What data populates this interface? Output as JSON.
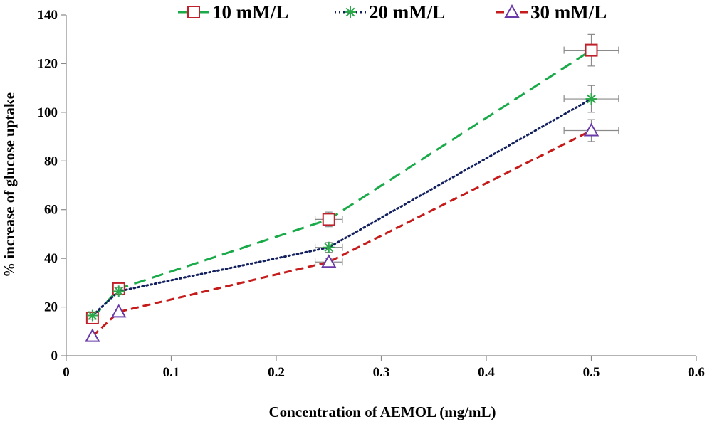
{
  "chart_data": {
    "type": "line",
    "xlabel": "Concentration of AEMOL (mg/mL)",
    "ylabel": "% increase of glucose uptake",
    "xlim": [
      0,
      0.6
    ],
    "ylim": [
      0,
      140
    ],
    "xticks": [
      0,
      0.1,
      0.2,
      0.3,
      0.4,
      0.5,
      0.6
    ],
    "yticks": [
      0,
      20,
      40,
      60,
      80,
      100,
      120,
      140
    ],
    "xtick_labels": [
      "0",
      "0.1",
      "0.2",
      "0.3",
      "0.4",
      "0.5",
      "0.6"
    ],
    "ytick_labels": [
      "0",
      "20",
      "40",
      "60",
      "80",
      "100",
      "120",
      "140"
    ],
    "legend_position": "top",
    "x": [
      0.025,
      0.05,
      0.25,
      0.5
    ],
    "series": [
      {
        "name": "10 mM/L",
        "values": [
          15.5,
          27.5,
          56,
          125.5
        ],
        "y_err": [
          1.5,
          1.5,
          3,
          6.5
        ],
        "x_err": [
          0,
          0,
          0.013,
          0.026
        ],
        "line_color": "#1aaa4a",
        "marker_color": "#c0202a",
        "marker": "square",
        "dash": "17 9"
      },
      {
        "name": "20 mM/L",
        "values": [
          16.5,
          26.5,
          44.5,
          105.5
        ],
        "y_err": [
          1.5,
          1.5,
          2,
          5.5
        ],
        "x_err": [
          0,
          0,
          0.013,
          0.026
        ],
        "line_color": "#13205e",
        "marker_color": "#2aa84a",
        "marker": "asterisk",
        "dash": "2 4"
      },
      {
        "name": "30 mM/L",
        "values": [
          8,
          18,
          38.5,
          92.5
        ],
        "y_err": [
          1,
          1,
          1.5,
          4.5
        ],
        "x_err": [
          0,
          0,
          0.013,
          0.026
        ],
        "line_color": "#c51b1b",
        "marker_color": "#6a3aa8",
        "marker": "triangle",
        "dash": "11 6"
      }
    ]
  }
}
